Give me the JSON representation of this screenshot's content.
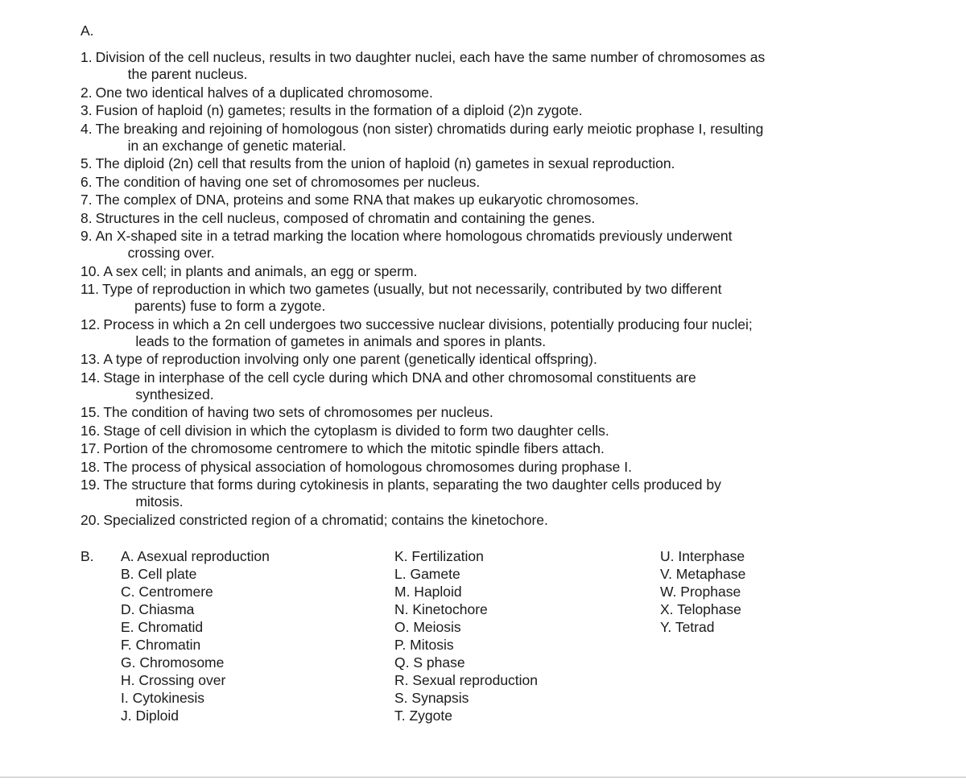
{
  "sectionA": {
    "label": "A.",
    "items": [
      {
        "num": "1.",
        "first": "Division of the cell nucleus, results in two daughter nuclei, each have the same number of chromosomes as",
        "cont": "the parent nucleus."
      },
      {
        "num": "2.",
        "first": "One two identical halves of a duplicated chromosome.",
        "cont": ""
      },
      {
        "num": "3.",
        "first": "Fusion of haploid (n) gametes; results in the formation of a diploid (2)n zygote.",
        "cont": ""
      },
      {
        "num": "4.",
        "first": "The breaking and rejoining of homologous (non sister) chromatids during early meiotic prophase I, resulting",
        "cont": "in an exchange of genetic material."
      },
      {
        "num": "5.",
        "first": "The diploid (2n) cell that results from the union of haploid (n) gametes in sexual reproduction.",
        "cont": ""
      },
      {
        "num": "6.",
        "first": "The condition of having one set of chromosomes per nucleus.",
        "cont": ""
      },
      {
        "num": "7.",
        "first": "The complex of DNA, proteins and some RNA that makes up eukaryotic chromosomes.",
        "cont": ""
      },
      {
        "num": "8.",
        "first": "Structures in the cell nucleus, composed of chromatin and containing the genes.",
        "cont": ""
      },
      {
        "num": "9.",
        "first": "An X-shaped site in a tetrad marking the location where homologous chromatids previously underwent",
        "cont": "crossing over."
      },
      {
        "num": "10.",
        "first": "A sex cell; in plants and animals, an egg or sperm.",
        "cont": ""
      },
      {
        "num": "11.",
        "first": "Type of reproduction in which two gametes (usually, but not necessarily, contributed by two different",
        "cont": "parents) fuse to form a zygote."
      },
      {
        "num": "12.",
        "first": "Process in which a 2n cell undergoes two successive nuclear divisions, potentially producing four nuclei;",
        "cont": "leads to the formation of gametes in animals and spores in plants."
      },
      {
        "num": "13.",
        "first": "A type of reproduction involving only one parent (genetically identical offspring).",
        "cont": ""
      },
      {
        "num": "14.",
        "first": "Stage in interphase of the cell cycle during which DNA and other chromosomal constituents are",
        "cont": "synthesized."
      },
      {
        "num": "15.",
        "first": "The condition of having two sets of chromosomes per nucleus.",
        "cont": ""
      },
      {
        "num": "16.",
        "first": "Stage of cell division in which the cytoplasm is divided to form two daughter cells.",
        "cont": ""
      },
      {
        "num": "17.",
        "first": "Portion of the chromosome centromere to which the mitotic spindle fibers attach.",
        "cont": ""
      },
      {
        "num": "18.",
        "first": "The process of physical association of homologous chromosomes during prophase I.",
        "cont": ""
      },
      {
        "num": "19.",
        "first": "The structure that forms during cytokinesis in plants, separating the two daughter cells produced by",
        "cont": "mitosis."
      },
      {
        "num": "20.",
        "first": "Specialized constricted region of a chromatid; contains the kinetochore.",
        "cont": ""
      }
    ]
  },
  "sectionB": {
    "label": "B.",
    "columns": [
      [
        "A. Asexual reproduction",
        "B. Cell plate",
        "C. Centromere",
        "D. Chiasma",
        "E. Chromatid",
        "F. Chromatin",
        "G. Chromosome",
        "H. Crossing over",
        "I. Cytokinesis",
        "J. Diploid"
      ],
      [
        "K. Fertilization",
        "L. Gamete",
        "M. Haploid",
        "N. Kinetochore",
        "O. Meiosis",
        "P. Mitosis",
        "Q. S phase",
        "R. Sexual reproduction",
        "S. Synapsis",
        "T. Zygote"
      ],
      [
        "U. Interphase",
        "V. Metaphase",
        "W. Prophase",
        "X. Telophase",
        "Y. Tetrad"
      ]
    ]
  }
}
